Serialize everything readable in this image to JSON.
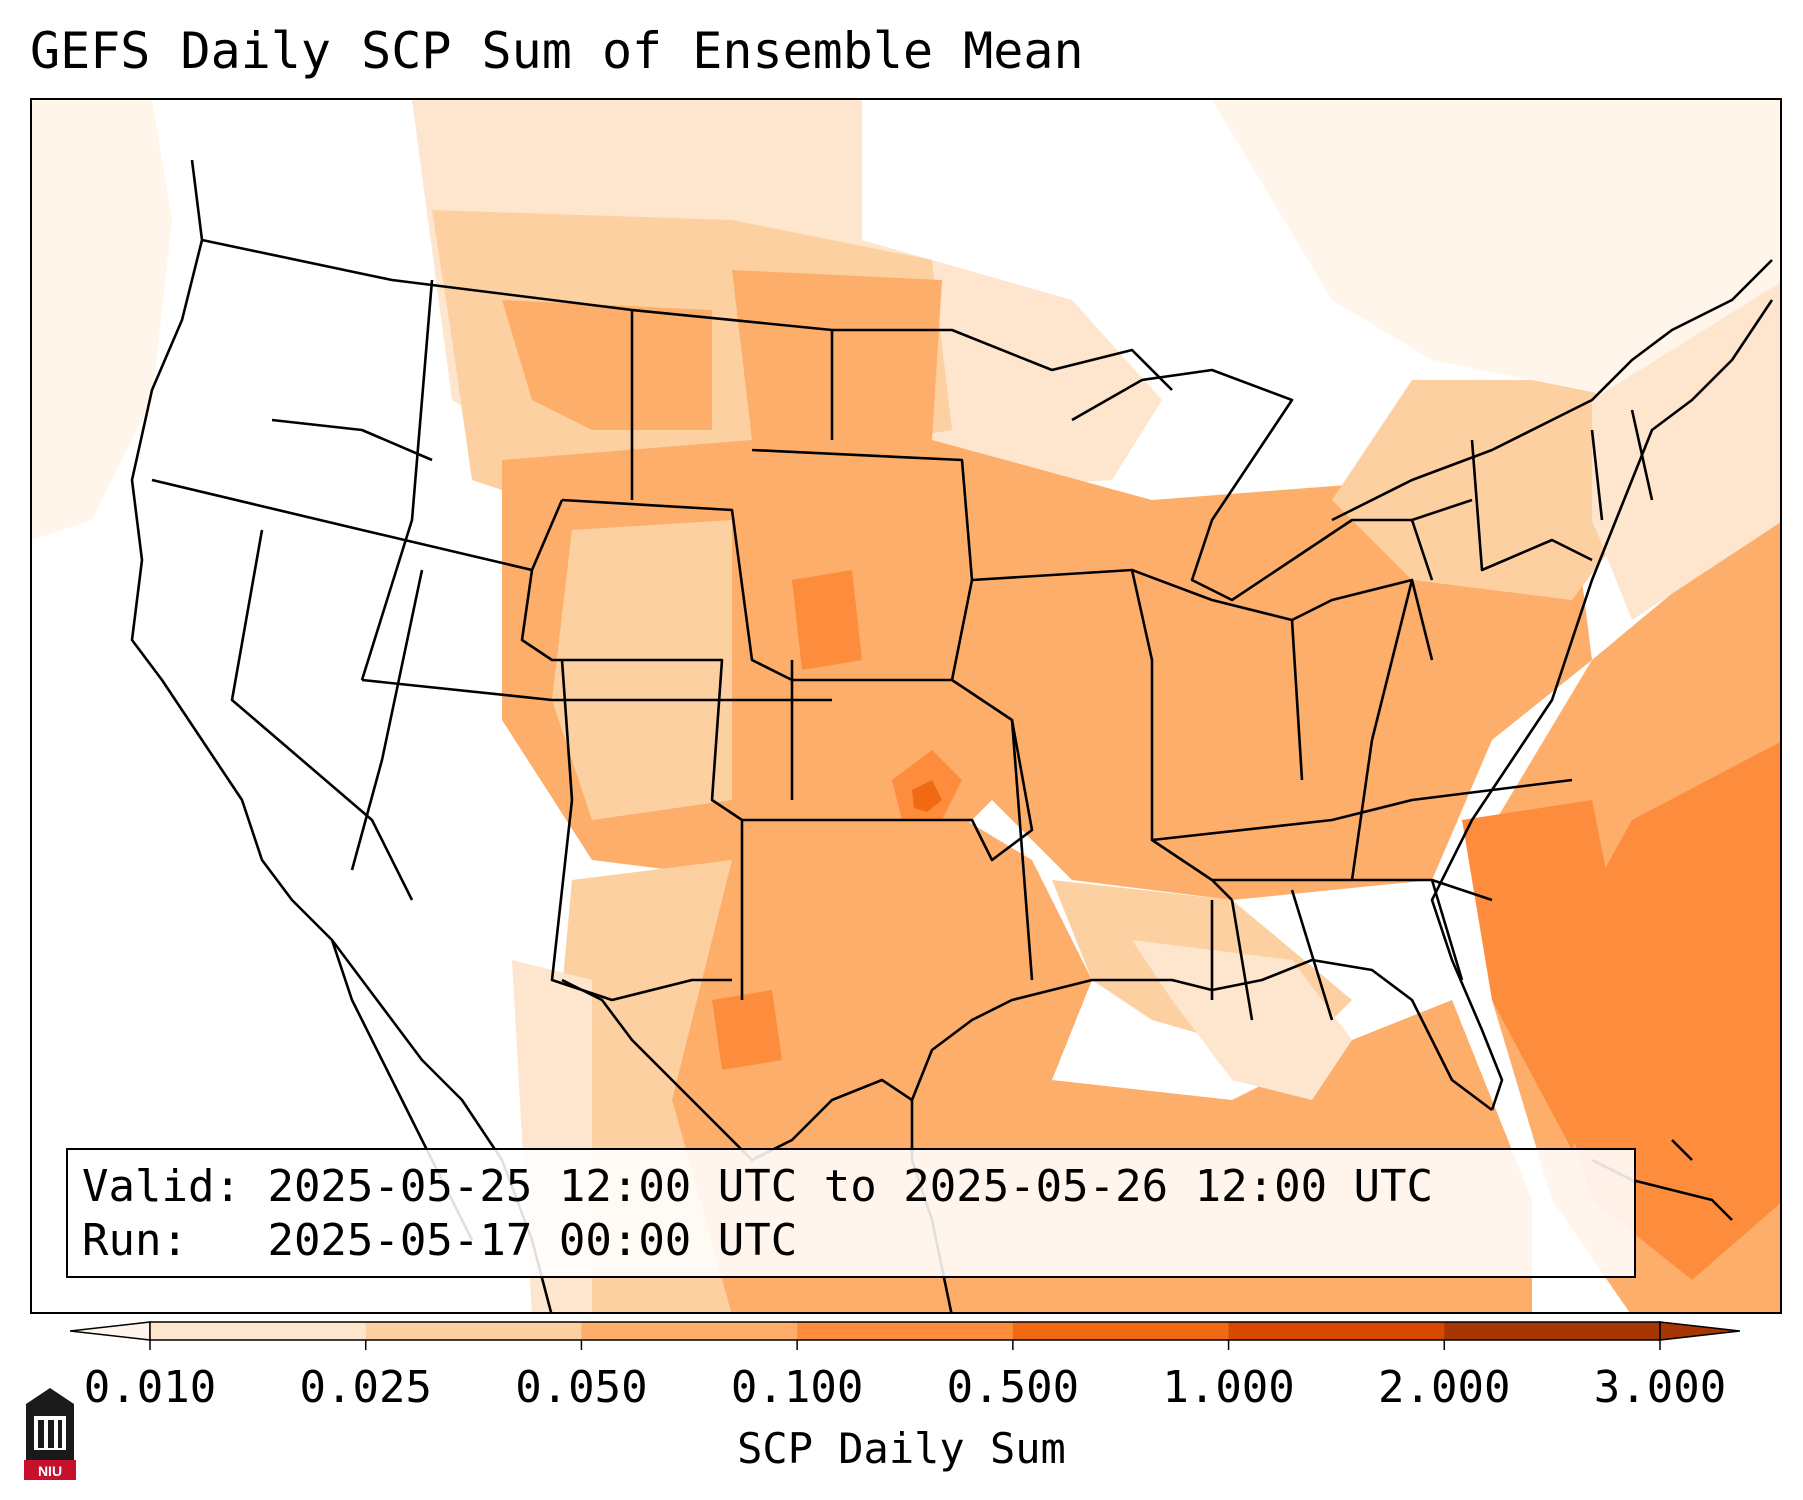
{
  "title": "GEFS Daily SCP Sum of Ensemble Mean",
  "info": {
    "valid_label": "Valid:",
    "valid_value": "2025-05-25 12:00 UTC to 2025-05-26 12:00 UTC",
    "run_label": "Run:",
    "run_value": "2025-05-17 00:00 UTC"
  },
  "colorbar": {
    "label": "SCP Daily Sum",
    "ticks": [
      "0.010",
      "0.025",
      "0.050",
      "0.100",
      "0.500",
      "1.000",
      "2.000",
      "3.000"
    ],
    "colors": [
      "#fff5eb",
      "#fee6ce",
      "#fdd0a2",
      "#fdae6b",
      "#fd8d3c",
      "#f16913",
      "#d94801",
      "#a63603"
    ],
    "extend": "both"
  },
  "logo": {
    "text": "NIU"
  }
}
